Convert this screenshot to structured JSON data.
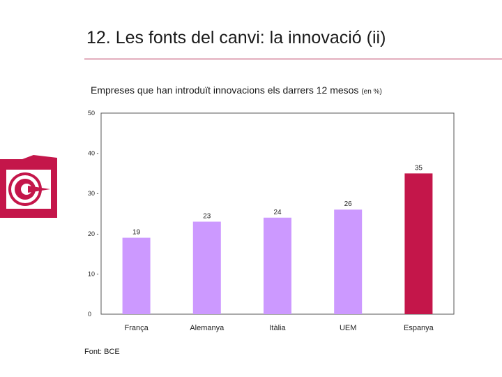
{
  "slide": {
    "title": "12. Les fonts del canvi: la innovació (ii)",
    "source": "Font: BCE"
  },
  "colors": {
    "accent": "#c4164a",
    "bar": "#cc99ff",
    "highlight_bar": "#c4164a",
    "rule": "#b01f4a"
  },
  "chart_data": {
    "type": "bar",
    "title": "Empreses que han introduït innovacions els darrers 12 mesos",
    "unit_label": "(en %)",
    "categories": [
      "França",
      "Alemanya",
      "Itàlia",
      "UEM",
      "Espanya"
    ],
    "values": [
      19,
      23,
      24,
      26,
      35
    ],
    "highlight": "Espanya",
    "ylim": [
      0,
      50
    ],
    "yticks": [
      "0",
      "10 -",
      "20 -",
      "30 -",
      "40 -",
      "50"
    ],
    "ytick_values": [
      0,
      10,
      20,
      30,
      40,
      50
    ],
    "xlabel": "",
    "ylabel": "",
    "grid": false
  }
}
